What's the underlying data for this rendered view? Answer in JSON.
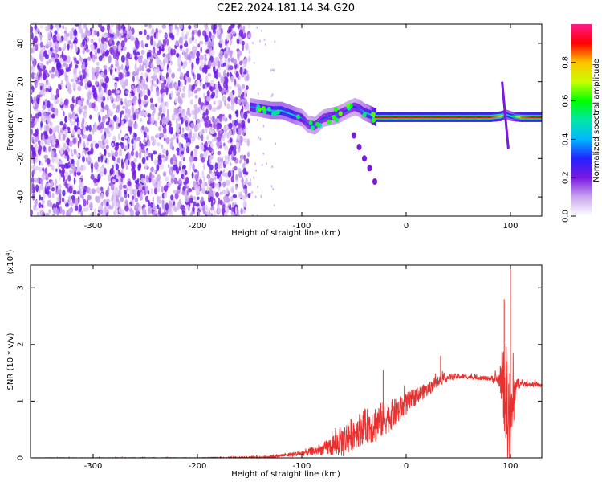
{
  "figure_title": "C2E2.2024.181.14.34.G20",
  "chart_data": [
    {
      "type": "heatmap",
      "xlabel": "Height of straight line (km)",
      "ylabel": "Frequency (Hz)",
      "xlim": [
        -360,
        130
      ],
      "ylim": [
        -50,
        50
      ],
      "x_ticks": [
        -300,
        -200,
        -100,
        0,
        100
      ],
      "y_ticks": [
        -40,
        -20,
        0,
        20,
        40
      ],
      "colorbar": {
        "label": "Normalized spectral amplitude",
        "range": [
          0,
          1
        ],
        "ticks": [
          0.0,
          0.2,
          0.4,
          0.6,
          0.8
        ],
        "colors": [
          "#ffffff",
          "#c9a5ef",
          "#7a18e0",
          "#2323ff",
          "#00b7ff",
          "#00e6a8",
          "#00ff00",
          "#c8ff00",
          "#ffc400",
          "#ff0000",
          "#ff1a8c"
        ]
      },
      "regions": [
        {
          "x_range": [
            -360,
            -150
          ],
          "y_range": [
            -50,
            50
          ],
          "amplitude": 0.05,
          "description_visible": false
        },
        {
          "x_range": [
            -150,
            -30
          ],
          "center_frequency": 3,
          "amplitude": 0.4
        },
        {
          "x_range": [
            -30,
            130
          ],
          "center_frequency": 1.5,
          "amplitude": 0.85
        }
      ],
      "ridge": {
        "x": [
          -150,
          -140,
          -130,
          -120,
          -110,
          -100,
          -95,
          -88,
          -80,
          -72,
          -65,
          -58,
          -50,
          -45,
          -40,
          -35,
          -30,
          -20,
          0,
          20,
          40,
          60,
          80,
          90,
          95,
          100,
          110,
          120,
          130
        ],
        "y": [
          7,
          6,
          5,
          5,
          3,
          1,
          -2,
          -3,
          1,
          2,
          3,
          5,
          7,
          6,
          4,
          3,
          1.5,
          1.5,
          1.5,
          1.5,
          1.5,
          1.5,
          1.5,
          2,
          3,
          2,
          1.5,
          1.5,
          1.5
        ],
        "amp": [
          0.35,
          0.4,
          0.45,
          0.45,
          0.45,
          0.35,
          0.3,
          0.35,
          0.3,
          0.35,
          0.35,
          0.3,
          0.3,
          0.35,
          0.4,
          0.45,
          0.9,
          0.9,
          0.9,
          0.9,
          0.9,
          0.9,
          0.9,
          0.8,
          0.5,
          0.5,
          0.85,
          0.9,
          0.9
        ]
      },
      "tail": {
        "x": [
          -50,
          -45,
          -40,
          -35,
          -30
        ],
        "y": [
          -8,
          -14,
          -20,
          -25,
          -32
        ]
      },
      "spike": {
        "x": 95,
        "y_range": [
          -15,
          20
        ]
      }
    },
    {
      "type": "line",
      "xlabel": "Height of straight line (km)",
      "ylabel": "SNR (10 * v/v)",
      "y_multiplier": "(x10",
      "y_multiplier_exp": "4",
      "y_multiplier_close": ")",
      "xlim": [
        -360,
        130
      ],
      "ylim": [
        0,
        3.4
      ],
      "x_ticks": [
        -300,
        -200,
        -100,
        0,
        100
      ],
      "y_ticks": [
        0,
        1,
        2,
        3
      ],
      "color": "#e8312f",
      "envelope": {
        "x": [
          -360,
          -200,
          -140,
          -120,
          -100,
          -80,
          -60,
          -50,
          -40,
          -30,
          -20,
          -10,
          0,
          10,
          20,
          30,
          40,
          50,
          60,
          80,
          90,
          95,
          100,
          105,
          110,
          120,
          130
        ],
        "base": [
          0.0,
          0.0,
          0.01,
          0.04,
          0.08,
          0.15,
          0.3,
          0.45,
          0.55,
          0.6,
          0.7,
          0.8,
          0.95,
          1.1,
          1.2,
          1.35,
          1.42,
          1.44,
          1.43,
          1.4,
          1.38,
          1.2,
          0.5,
          1.3,
          1.3,
          1.3,
          1.28
        ],
        "noise": [
          0.005,
          0.008,
          0.02,
          0.03,
          0.05,
          0.1,
          0.3,
          0.3,
          0.3,
          0.35,
          0.3,
          0.25,
          0.2,
          0.15,
          0.12,
          0.1,
          0.06,
          0.05,
          0.04,
          0.04,
          0.15,
          0.9,
          1.0,
          0.15,
          0.05,
          0.04,
          0.04
        ]
      },
      "peaks": [
        {
          "x": -22,
          "y": 1.55
        },
        {
          "x": 33,
          "y": 1.8
        },
        {
          "x": 94,
          "y": 2.8
        },
        {
          "x": 100,
          "y": 3.4
        }
      ]
    }
  ]
}
